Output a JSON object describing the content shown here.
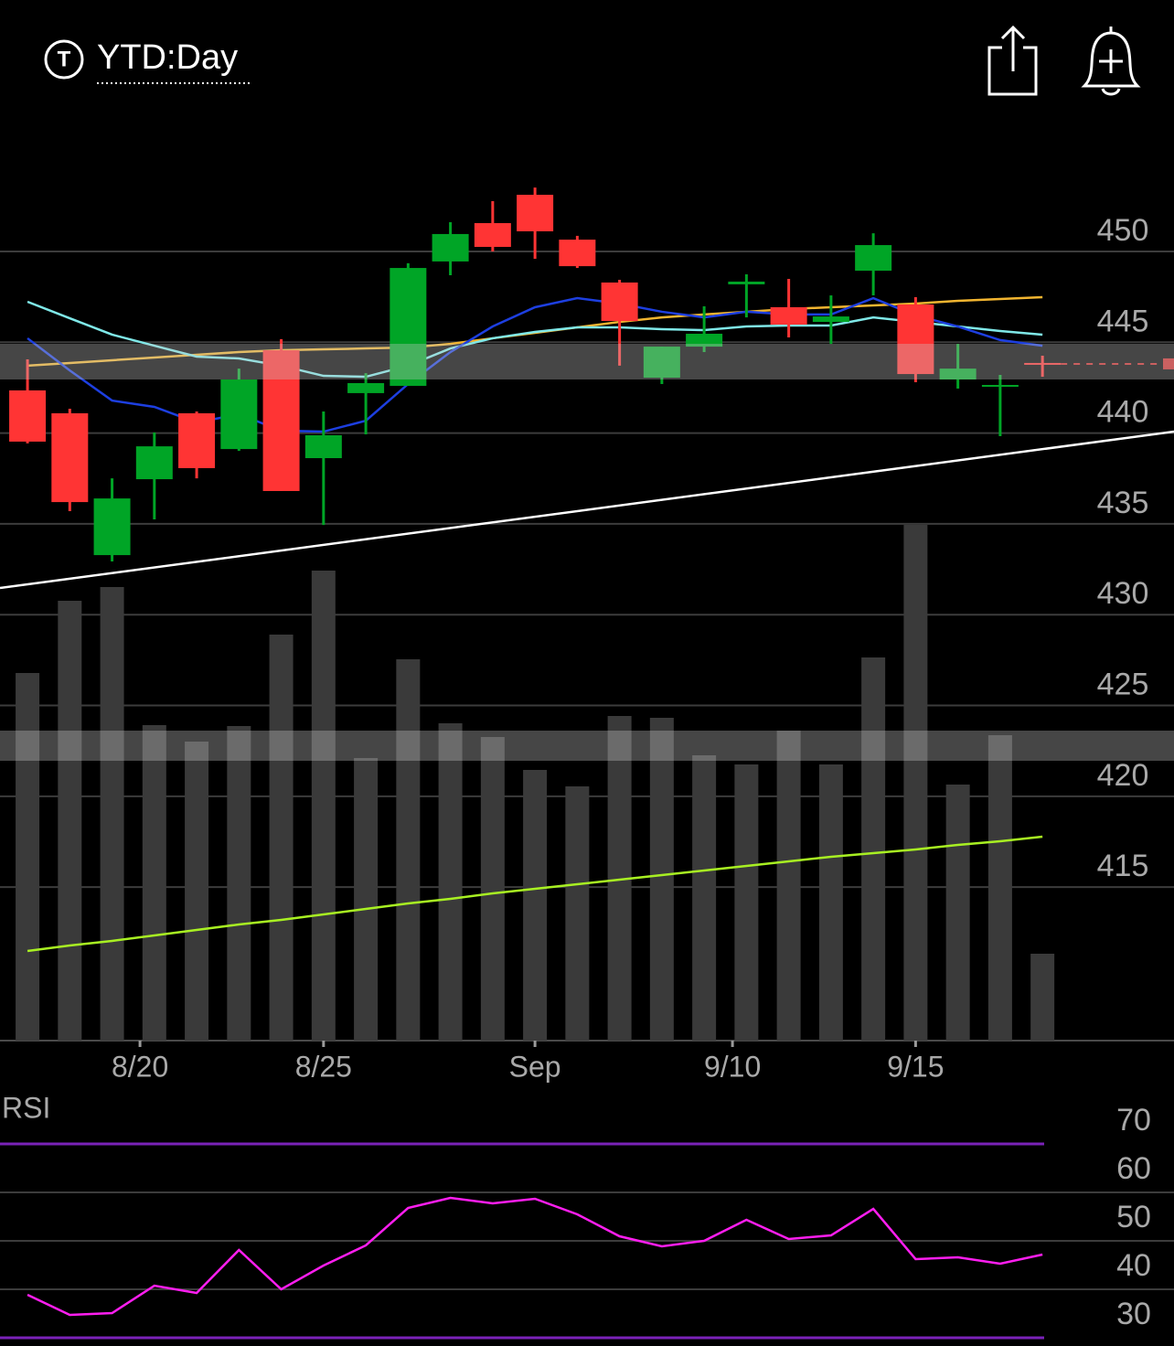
{
  "header": {
    "icon_letter": "T",
    "title": "YTD:Day"
  },
  "chart_data": [
    {
      "type": "candlestick",
      "x": [
        0,
        1,
        2,
        3,
        4,
        5,
        6,
        7,
        8,
        9,
        10,
        11,
        12,
        13,
        14,
        15,
        16,
        17,
        18,
        19,
        20,
        21,
        22,
        23,
        24
      ],
      "open": [
        442.35,
        441.09,
        433.28,
        437.46,
        441.09,
        439.12,
        444.56,
        438.62,
        442.2,
        442.6,
        449.45,
        451.56,
        453.12,
        450.65,
        448.29,
        443.05,
        444.76,
        448.19,
        446.93,
        446.12,
        448.94,
        447.08,
        442.95,
        442.55,
        443.86
      ],
      "high": [
        444.06,
        441.34,
        437.51,
        440.03,
        441.19,
        443.55,
        445.17,
        441.19,
        443.3,
        449.35,
        451.61,
        452.77,
        453.52,
        450.86,
        448.44,
        444.76,
        446.98,
        448.74,
        448.49,
        447.58,
        451.0,
        447.48,
        444.91,
        443.2,
        444.26
      ],
      "low": [
        439.43,
        435.7,
        432.93,
        435.25,
        437.51,
        439.02,
        436.81,
        434.94,
        439.93,
        442.6,
        448.69,
        450.0,
        449.6,
        449.09,
        443.71,
        442.7,
        444.46,
        446.37,
        445.27,
        444.91,
        447.58,
        442.8,
        442.45,
        439.83,
        443.1
      ],
      "close": [
        439.53,
        436.2,
        436.4,
        439.27,
        438.07,
        442.95,
        436.81,
        439.88,
        442.75,
        449.09,
        450.96,
        450.25,
        451.11,
        449.19,
        446.17,
        444.76,
        445.47,
        448.34,
        445.97,
        446.42,
        450.35,
        443.25,
        443.55,
        442.65,
        443.81
      ],
      "up_color": "#00a526",
      "down_color": "#ff3434",
      "overlays": [
        {
          "color": "#f2b530",
          "values": [
            443.71,
            443.86,
            444.01,
            444.16,
            444.31,
            444.46,
            444.56,
            444.61,
            444.66,
            444.71,
            444.91,
            445.22,
            445.52,
            445.82,
            446.12,
            446.37,
            446.53,
            446.68,
            446.83,
            446.93,
            447.03,
            447.13,
            447.28,
            447.38,
            447.48
          ]
        },
        {
          "color": "#7fe8e8",
          "values": [
            447.23,
            446.32,
            445.42,
            444.81,
            444.21,
            444.11,
            443.71,
            443.15,
            443.1,
            443.71,
            444.66,
            445.22,
            445.57,
            445.82,
            445.82,
            445.72,
            445.67,
            445.87,
            445.92,
            445.92,
            446.37,
            446.12,
            445.87,
            445.62,
            445.42
          ]
        },
        {
          "color": "#1d3fe0",
          "values": [
            445.22,
            443.45,
            441.79,
            441.44,
            440.58,
            441.04,
            440.13,
            440.08,
            440.68,
            442.7,
            444.46,
            445.87,
            446.93,
            447.43,
            447.13,
            446.68,
            446.37,
            446.68,
            446.53,
            446.53,
            447.43,
            446.48,
            445.87,
            445.12,
            444.81
          ]
        }
      ],
      "trendline": {
        "color": "#ffffff",
        "x": [
          -0.65,
          27.11
        ],
        "values": [
          431.47,
          440.08
        ]
      },
      "xlim": [
        -0.65,
        27.11
      ],
      "ylim": [
        406.55,
        457.3
      ],
      "yticks": [
        450,
        445,
        440,
        435,
        430,
        425,
        420,
        415
      ],
      "xticks": [
        {
          "value": 2.66,
          "label": "8/20"
        },
        {
          "value": 7.0,
          "label": "8/25"
        },
        {
          "value": 12.0,
          "label": "Sep"
        },
        {
          "value": 16.67,
          "label": "9/10"
        },
        {
          "value": 21.0,
          "label": "9/15"
        }
      ],
      "grid": true
    },
    {
      "type": "bar",
      "values": [
        402,
        481,
        496,
        345,
        327,
        344,
        444,
        514,
        309,
        417,
        347,
        332,
        296,
        278,
        355,
        353,
        312,
        302,
        339,
        302,
        419,
        564,
        280,
        334,
        95
      ],
      "color": "#3a3a3a",
      "average": {
        "color": "#a8f022",
        "values": [
          98,
          104,
          109,
          115,
          121,
          127,
          132,
          138,
          144,
          150,
          155,
          161,
          166,
          171,
          176,
          181,
          186,
          191,
          196,
          201,
          205,
          209,
          214,
          218,
          223
        ]
      },
      "ylim": [
        0,
        564
      ]
    },
    {
      "type": "line",
      "title": "RSI",
      "values": [
        38.87,
        34.72,
        35.09,
        40.75,
        39.25,
        48.11,
        40.0,
        44.91,
        49.06,
        56.79,
        58.87,
        57.74,
        58.68,
        55.47,
        50.94,
        48.87,
        50.0,
        54.34,
        50.38,
        51.13,
        56.6,
        46.23,
        46.6,
        45.28,
        47.17
      ],
      "color": "#ff1ef0",
      "band_color": "#7a22b8",
      "ylim": [
        30,
        70
      ],
      "yticks": [
        70,
        60,
        50,
        40,
        30
      ]
    }
  ]
}
